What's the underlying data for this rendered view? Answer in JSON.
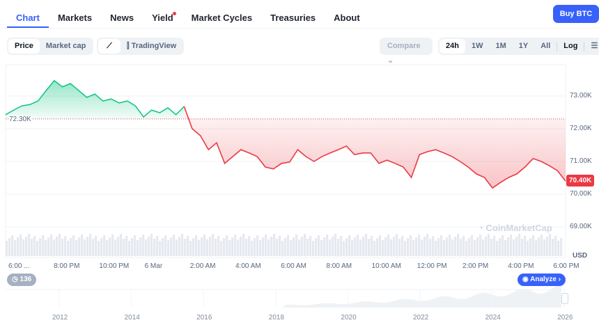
{
  "tabs": [
    "Chart",
    "Markets",
    "News",
    "Yield",
    "Market Cycles",
    "Treasuries",
    "About"
  ],
  "buy_label": "Buy BTC",
  "mode": [
    "Price",
    "Market cap"
  ],
  "tradingview": "TradingView",
  "compare": "Compare",
  "ranges": [
    "24h",
    "1W",
    "1M",
    "1Y",
    "All"
  ],
  "log": "Log",
  "colors": {
    "accent": "#3861fb",
    "up": "#16c784",
    "down": "#ea3943"
  },
  "chart_data": {
    "type": "line",
    "baseline": 72.3,
    "baseline_label": "72.30K",
    "last_label": "70.40K",
    "currency": "USD",
    "ylim": [
      68.5,
      74.0
    ],
    "yticks": [
      {
        "v": 73,
        "l": "73.00K"
      },
      {
        "v": 72,
        "l": "72.00K"
      },
      {
        "v": 71,
        "l": "71.00K"
      },
      {
        "v": 70,
        "l": "70.00K"
      },
      {
        "v": 69,
        "l": "69.00K"
      }
    ],
    "xticks": [
      "6:00 ...",
      "8:00 PM",
      "10:00 PM",
      "6 Mar",
      "2:00 AM",
      "4:00 AM",
      "6:00 AM",
      "8:00 AM",
      "10:00 AM",
      "12:00 PM",
      "2:00 PM",
      "4:00 PM",
      "6:00 PM"
    ],
    "values": [
      72.43,
      72.57,
      72.7,
      72.74,
      72.85,
      73.17,
      73.47,
      73.28,
      73.38,
      73.17,
      72.96,
      73.06,
      72.85,
      72.91,
      72.79,
      72.85,
      72.7,
      72.36,
      72.57,
      72.49,
      72.64,
      72.43,
      72.68,
      72.0,
      71.79,
      71.36,
      71.57,
      70.94,
      71.15,
      71.36,
      71.26,
      71.15,
      70.83,
      70.77,
      70.94,
      70.98,
      71.36,
      71.15,
      71.0,
      71.15,
      71.26,
      71.36,
      71.47,
      71.21,
      71.26,
      71.26,
      70.94,
      71.04,
      70.94,
      70.83,
      70.51,
      71.21,
      71.3,
      71.36,
      71.26,
      71.15,
      71.0,
      70.83,
      70.62,
      70.51,
      70.19,
      70.36,
      70.51,
      70.62,
      70.83,
      71.09,
      71.0,
      70.87,
      70.72,
      70.4
    ]
  },
  "watermark": "CoinMarketCap",
  "history_badge": "136",
  "analyze": "Analyze",
  "navigator_years": [
    "2012",
    "2014",
    "2016",
    "2018",
    "2020",
    "2022",
    "2024",
    "2026"
  ]
}
